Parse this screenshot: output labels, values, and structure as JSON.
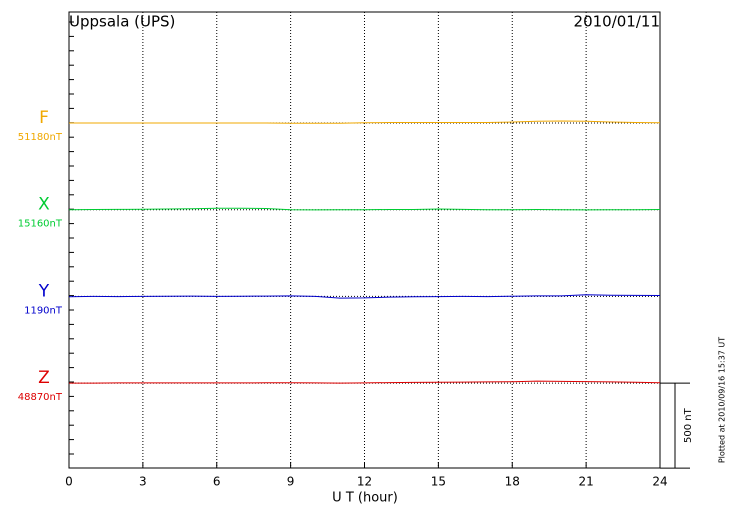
{
  "chart_data": {
    "type": "line",
    "title": "Uppsala (UPS)",
    "date": "2010/01/11",
    "footnote": "Plotted at 2010/09/16 15:37 UT",
    "xlabel": "U T (hour)",
    "xlim": [
      0,
      24
    ],
    "xticks": [
      0,
      3,
      6,
      9,
      12,
      15,
      18,
      21,
      24
    ],
    "grid": true,
    "scale": 500,
    "scale_label": "500 nT",
    "x": [
      0,
      1,
      2,
      3,
      4,
      5,
      6,
      7,
      8,
      9,
      10,
      11,
      12,
      13,
      14,
      15,
      16,
      17,
      18,
      19,
      20,
      21,
      22,
      23,
      24
    ],
    "series": [
      {
        "name": "F",
        "color": "#f0a800",
        "baseline": 51180,
        "baseline_label": "51180nT",
        "values": [
          51180,
          51180,
          51180,
          51180,
          51180,
          51180,
          51180,
          51180,
          51180,
          51179,
          51179,
          51179,
          51181,
          51183,
          51183,
          51183,
          51183,
          51183,
          51186,
          51190,
          51192,
          51190,
          51186,
          51183,
          51181
        ]
      },
      {
        "name": "X",
        "color": "#00cc33",
        "baseline": 15160,
        "baseline_label": "15160nT",
        "values": [
          15160,
          15161,
          15162,
          15163,
          15164,
          15165,
          15168,
          15169,
          15167,
          15160,
          15159,
          15160,
          15160,
          15161,
          15161,
          15164,
          15162,
          15160,
          15160,
          15161,
          15160,
          15159,
          15160,
          15160,
          15161
        ]
      },
      {
        "name": "Y",
        "color": "#0000cc",
        "baseline": 1190,
        "baseline_label": "1190nT",
        "values": [
          1188,
          1190,
          1189,
          1190,
          1191,
          1192,
          1190,
          1191,
          1192,
          1193,
          1190,
          1180,
          1181,
          1186,
          1188,
          1189,
          1190,
          1189,
          1191,
          1193,
          1193,
          1200,
          1197,
          1196,
          1195
        ]
      },
      {
        "name": "Z",
        "color": "#dd0000",
        "baseline": 48870,
        "baseline_label": "48870nT",
        "values": [
          48870,
          48870,
          48871,
          48871,
          48871,
          48871,
          48871,
          48871,
          48872,
          48872,
          48871,
          48870,
          48871,
          48873,
          48874,
          48875,
          48876,
          48877,
          48878,
          48882,
          48880,
          48879,
          48877,
          48875,
          48872
        ]
      }
    ]
  }
}
